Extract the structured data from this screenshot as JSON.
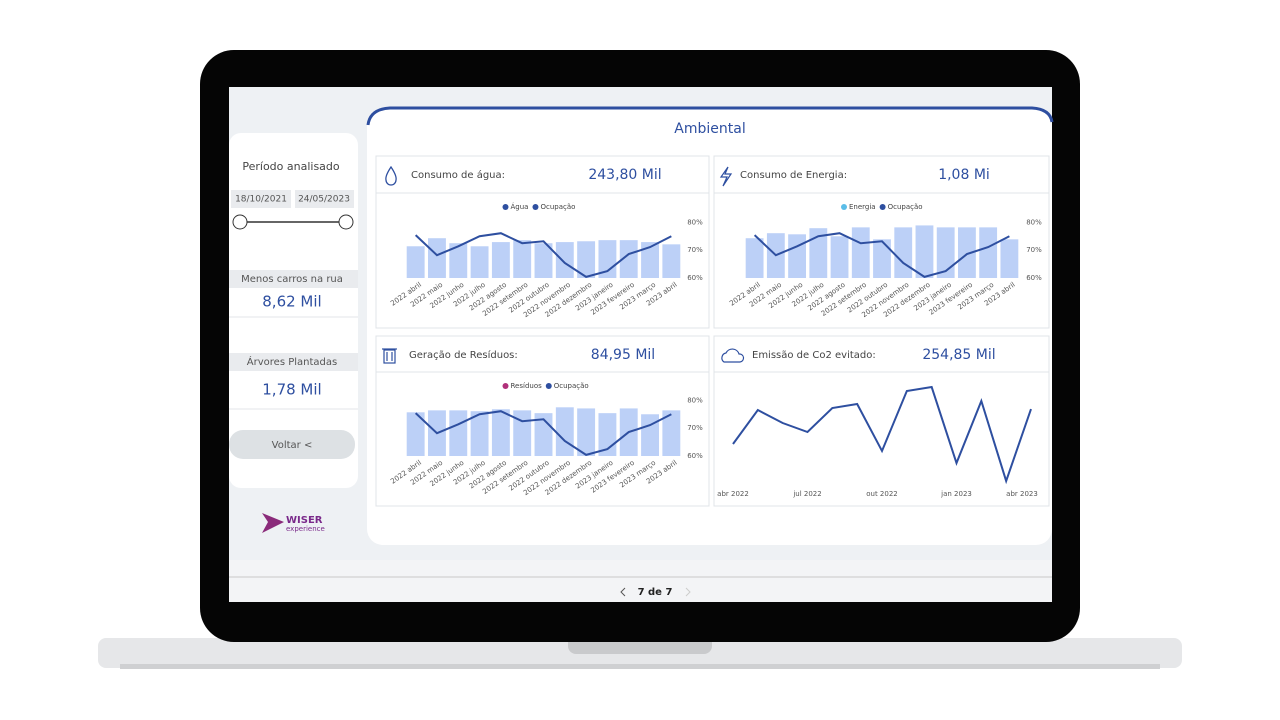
{
  "sidebar": {
    "period_label": "Período analisado",
    "date_start": "18/10/2021",
    "date_end": "24/05/2023",
    "kpis": [
      {
        "label": "Menos carros na rua",
        "value": "8,62 Mil"
      },
      {
        "label": "Árvores Plantadas",
        "value": "1,78 Mil"
      }
    ],
    "back_button": "Voltar <",
    "logo": {
      "name": "WISER",
      "tagline": "experience"
    }
  },
  "header": {
    "title": "Ambiental"
  },
  "cards": [
    {
      "title": "Consumo de água:",
      "value": "243,80 Mil"
    },
    {
      "title": "Consumo de Energia:",
      "value": "1,08 Mi"
    },
    {
      "title": "Geração de Resíduos:",
      "value": "84,95 Mil"
    },
    {
      "title": "Emissão de Co2 evitado:",
      "value": "254,85 Mil"
    }
  ],
  "pager": {
    "label": "7 de 7"
  },
  "chart_data": [
    {
      "type": "bar_line",
      "legend": "top",
      "grid": false,
      "categories": [
        "2022 abril",
        "2022 maio",
        "2022 junho",
        "2022 julho",
        "2022 agosto",
        "2022 setembro",
        "2022 outubro",
        "2022 novembro",
        "2022 dezembro",
        "2023 janeiro",
        "2023 fevereiro",
        "2023 março",
        "2023 abril"
      ],
      "series": [
        {
          "name": "Água",
          "type": "bar",
          "color": "#2e4fa0",
          "bar_color": "#bcd0f7",
          "values": [
            71.4,
            74.3,
            72.5,
            71.4,
            72.9,
            73.6,
            72.5,
            72.9,
            73.2,
            73.6,
            73.6,
            72.9,
            72.1
          ]
        },
        {
          "name": "Ocupação",
          "type": "line",
          "color": "#2e4fa0",
          "values": [
            75.4,
            68.2,
            71.4,
            75,
            76.1,
            72.5,
            73.2,
            65.4,
            60.4,
            62.5,
            68.6,
            71.1,
            75
          ]
        }
      ],
      "ylim": [
        60,
        83
      ],
      "yticks": [
        {
          "value": 60,
          "label": "60%"
        },
        {
          "value": 70,
          "label": "70%"
        },
        {
          "value": 80,
          "label": "80%"
        }
      ]
    },
    {
      "type": "bar_line",
      "legend": "top",
      "grid": false,
      "categories": [
        "2022 abril",
        "2022 maio",
        "2022 junho",
        "2022 julho",
        "2022 agosto",
        "2022 setembro",
        "2022 outubro",
        "2022 novembro",
        "2022 dezembro",
        "2023 janeiro",
        "2023 fevereiro",
        "2023 março",
        "2023 abril"
      ],
      "series": [
        {
          "name": "Energia",
          "type": "bar",
          "color": "#5bbde8",
          "bar_color": "#bcd0f7",
          "values": [
            74.3,
            76.1,
            75.7,
            77.9,
            75,
            78.2,
            73.9,
            78.2,
            78.9,
            78.2,
            78.2,
            78.2,
            73.9
          ]
        },
        {
          "name": "Ocupação",
          "type": "line",
          "color": "#2e4fa0",
          "values": [
            75.4,
            68.2,
            71.4,
            75,
            76.1,
            72.5,
            73.2,
            65.4,
            60.4,
            62.5,
            68.6,
            71.1,
            75
          ]
        }
      ],
      "ylim": [
        60,
        83
      ],
      "yticks": [
        {
          "value": 60,
          "label": "60%"
        },
        {
          "value": 70,
          "label": "70%"
        },
        {
          "value": 80,
          "label": "80%"
        }
      ]
    },
    {
      "type": "bar_line",
      "legend": "top",
      "grid": false,
      "categories": [
        "2022 abril",
        "2022 maio",
        "2022 junho",
        "2022 julho",
        "2022 agosto",
        "2022 setembro",
        "2022 outubro",
        "2022 novembro",
        "2022 dezembro",
        "2023 janeiro",
        "2023 fevereiro",
        "2023 março",
        "2023 abril"
      ],
      "series": [
        {
          "name": "Resíduos",
          "type": "bar",
          "color": "#b0307a",
          "bar_color": "#bcd0f7",
          "values": [
            75.7,
            76.4,
            76.4,
            76.1,
            76.8,
            76.4,
            75.4,
            77.5,
            77.1,
            75.4,
            77.1,
            75,
            76.4
          ]
        },
        {
          "name": "Ocupação",
          "type": "line",
          "color": "#2e4fa0",
          "values": [
            75.4,
            68.2,
            71.4,
            75,
            76.1,
            72.5,
            73.2,
            65.4,
            60.4,
            62.5,
            68.6,
            71.1,
            75
          ]
        }
      ],
      "ylim": [
        60,
        83
      ],
      "yticks": [
        {
          "value": 60,
          "label": "60%"
        },
        {
          "value": 70,
          "label": "70%"
        },
        {
          "value": 80,
          "label": "80%"
        }
      ]
    },
    {
      "type": "line",
      "grid": false,
      "categories": [
        "abr 2022",
        null,
        null,
        "jul 2022",
        null,
        null,
        "out 2022",
        null,
        null,
        "jan 2023",
        null,
        null,
        "abr 2023"
      ],
      "series": [
        {
          "type": "line",
          "color": "#2e4fa0",
          "values": [
            41.8,
            72.7,
            60.9,
            52.7,
            74.5,
            78.2,
            35.5,
            90,
            93.6,
            24.5,
            80.9,
            8.2,
            73.6
          ]
        }
      ],
      "ylim": [
        0,
        100
      ]
    }
  ]
}
